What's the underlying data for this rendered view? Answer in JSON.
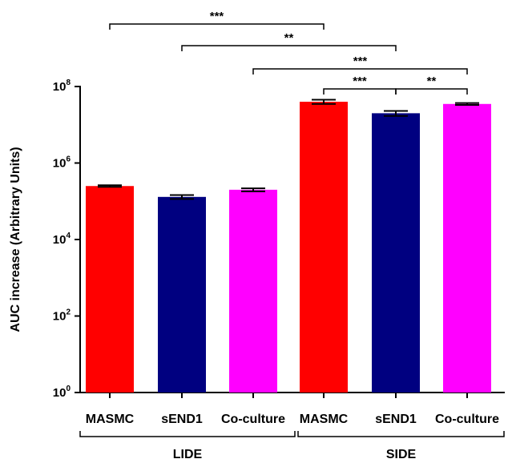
{
  "chart_data": {
    "type": "bar",
    "scale": "log10",
    "title": "",
    "xlabel": "",
    "ylabel": "AUC increase (Arbitrary Units)",
    "ylim": [
      1,
      100000000
    ],
    "y_ticks": [
      {
        "base": "10",
        "exp": "0"
      },
      {
        "base": "10",
        "exp": "2"
      },
      {
        "base": "10",
        "exp": "4"
      },
      {
        "base": "10",
        "exp": "6"
      },
      {
        "base": "10",
        "exp": "8"
      }
    ],
    "categories": [
      "MASMC",
      "sEND1",
      "Co-culture",
      "MASMC",
      "sEND1",
      "Co-culture"
    ],
    "groups": [
      {
        "label": "LIDE",
        "categories": [
          0,
          1,
          2
        ]
      },
      {
        "label": "SIDE",
        "categories": [
          3,
          4,
          5
        ]
      }
    ],
    "values": [
      250000,
      130000,
      200000,
      40000000,
      20000000,
      35000000
    ],
    "errors": [
      12000,
      15000,
      18000,
      5000000,
      3000000,
      2000000
    ],
    "colors": [
      "#ff0000",
      "#000080",
      "#ff00ff",
      "#ff0000",
      "#000080",
      "#ff00ff"
    ],
    "significance": [
      {
        "from": 0,
        "to": 3,
        "label": "***"
      },
      {
        "from": 1,
        "to": 4,
        "label": "**"
      },
      {
        "from": 2,
        "to": 5,
        "label": "***"
      },
      {
        "from": 3,
        "to": 4,
        "label": "***"
      },
      {
        "from": 4,
        "to": 5,
        "label": "**"
      }
    ],
    "grid": false,
    "legend": "none"
  }
}
